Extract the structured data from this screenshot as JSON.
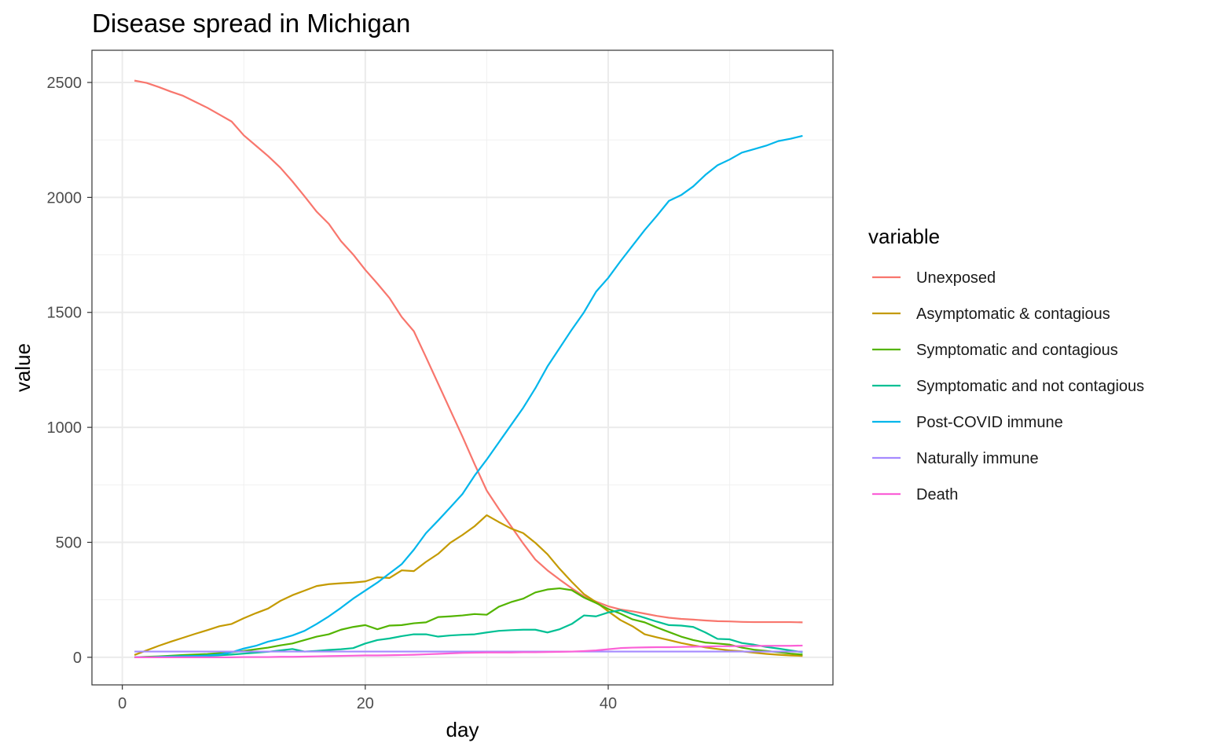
{
  "chart_data": {
    "type": "line",
    "title": "Disease spread in Michigan",
    "xlabel": "day",
    "ylabel": "value",
    "xlim": [
      -2.5,
      58.5
    ],
    "ylim": [
      -120,
      2640
    ],
    "x_ticks": [
      0,
      20,
      40
    ],
    "x_ticks_minor": [
      10,
      30,
      50
    ],
    "y_ticks": [
      0,
      500,
      1000,
      1500,
      2000,
      2500
    ],
    "y_ticks_minor": [
      250,
      750,
      1250,
      1750,
      2250
    ],
    "grid": true,
    "legend_position": "right",
    "legend_title": "variable",
    "x": [
      1,
      2,
      3,
      4,
      5,
      6,
      7,
      8,
      9,
      10,
      11,
      12,
      13,
      14,
      15,
      16,
      17,
      18,
      19,
      20,
      21,
      22,
      23,
      24,
      25,
      26,
      27,
      28,
      29,
      30,
      31,
      32,
      33,
      34,
      35,
      36,
      37,
      38,
      39,
      40,
      41,
      42,
      43,
      44,
      45,
      46,
      47,
      48,
      49,
      50,
      51,
      52,
      53,
      54,
      55,
      56
    ],
    "series": [
      {
        "name": "Unexposed",
        "color": "#F8766D",
        "values": [
          2508,
          2498,
          2480,
          2460,
          2442,
          2416,
          2390,
          2360,
          2330,
          2270,
          2225,
          2180,
          2130,
          2070,
          2005,
          1938,
          1885,
          1810,
          1752,
          1685,
          1625,
          1562,
          1480,
          1418,
          1305,
          1190,
          1075,
          960,
          840,
          725,
          645,
          570,
          495,
          425,
          378,
          338,
          300,
          265,
          242,
          222,
          208,
          200,
          190,
          180,
          172,
          167,
          164,
          160,
          157,
          156,
          154,
          153,
          153,
          153,
          153,
          152
        ]
      },
      {
        "name": "Asymptomatic & contagious",
        "color": "#C49A00",
        "values": [
          10,
          30,
          50,
          68,
          85,
          102,
          118,
          135,
          145,
          170,
          192,
          212,
          245,
          270,
          290,
          310,
          318,
          322,
          325,
          330,
          348,
          345,
          378,
          375,
          415,
          450,
          498,
          532,
          570,
          618,
          588,
          560,
          540,
          498,
          448,
          385,
          328,
          275,
          240,
          200,
          162,
          135,
          100,
          87,
          75,
          62,
          52,
          43,
          36,
          30,
          26,
          20,
          15,
          11,
          8,
          6
        ]
      },
      {
        "name": "Symptomatic and contagious",
        "color": "#53B400",
        "values": [
          0,
          2,
          4,
          7,
          10,
          12,
          14,
          18,
          22,
          28,
          35,
          42,
          52,
          60,
          75,
          90,
          100,
          120,
          132,
          140,
          122,
          138,
          140,
          148,
          152,
          175,
          178,
          182,
          188,
          185,
          220,
          240,
          255,
          282,
          295,
          300,
          292,
          260,
          236,
          210,
          190,
          165,
          152,
          130,
          110,
          90,
          75,
          64,
          60,
          55,
          42,
          33,
          28,
          22,
          16,
          12
        ]
      },
      {
        "name": "Symptomatic and not contagious",
        "color": "#00C094",
        "values": [
          0,
          0,
          1,
          2,
          3,
          4,
          6,
          9,
          12,
          16,
          20,
          24,
          30,
          36,
          25,
          28,
          32,
          35,
          40,
          60,
          75,
          82,
          92,
          100,
          100,
          90,
          95,
          98,
          100,
          108,
          115,
          118,
          120,
          120,
          108,
          122,
          145,
          182,
          178,
          195,
          205,
          188,
          172,
          155,
          140,
          138,
          132,
          108,
          80,
          78,
          62,
          55,
          45,
          38,
          30,
          22
        ]
      },
      {
        "name": "Post-COVID immune",
        "color": "#00B6EB",
        "values": [
          0,
          0,
          2,
          4,
          5,
          6,
          8,
          12,
          22,
          38,
          50,
          68,
          80,
          95,
          115,
          145,
          178,
          215,
          255,
          290,
          325,
          365,
          405,
          468,
          540,
          595,
          652,
          710,
          790,
          860,
          935,
          1010,
          1085,
          1170,
          1265,
          1345,
          1425,
          1500,
          1590,
          1650,
          1722,
          1790,
          1858,
          1920,
          1985,
          2010,
          2048,
          2098,
          2140,
          2165,
          2195,
          2210,
          2225,
          2245,
          2255,
          2268
        ]
      },
      {
        "name": "Naturally immune",
        "color": "#A58AFF",
        "values": [
          25,
          25,
          25,
          25,
          25,
          25,
          25,
          25,
          25,
          25,
          25,
          25,
          25,
          25,
          25,
          25,
          25,
          25,
          25,
          25,
          25,
          25,
          25,
          25,
          25,
          25,
          25,
          25,
          25,
          25,
          25,
          25,
          25,
          25,
          25,
          25,
          25,
          25,
          25,
          25,
          25,
          25,
          25,
          25,
          25,
          25,
          25,
          25,
          25,
          25,
          25,
          25,
          25,
          25,
          25,
          25
        ]
      },
      {
        "name": "Death",
        "color": "#FB61D7",
        "values": [
          0,
          0,
          0,
          0,
          0,
          0,
          0,
          0,
          0,
          1,
          1,
          1,
          2,
          2,
          3,
          4,
          5,
          6,
          7,
          8,
          8,
          9,
          10,
          11,
          13,
          15,
          17,
          19,
          20,
          21,
          21,
          21,
          22,
          22,
          23,
          24,
          25,
          27,
          30,
          35,
          40,
          42,
          43,
          44,
          44,
          45,
          46,
          47,
          48,
          48,
          49,
          49,
          50,
          50,
          50,
          51
        ]
      }
    ]
  }
}
